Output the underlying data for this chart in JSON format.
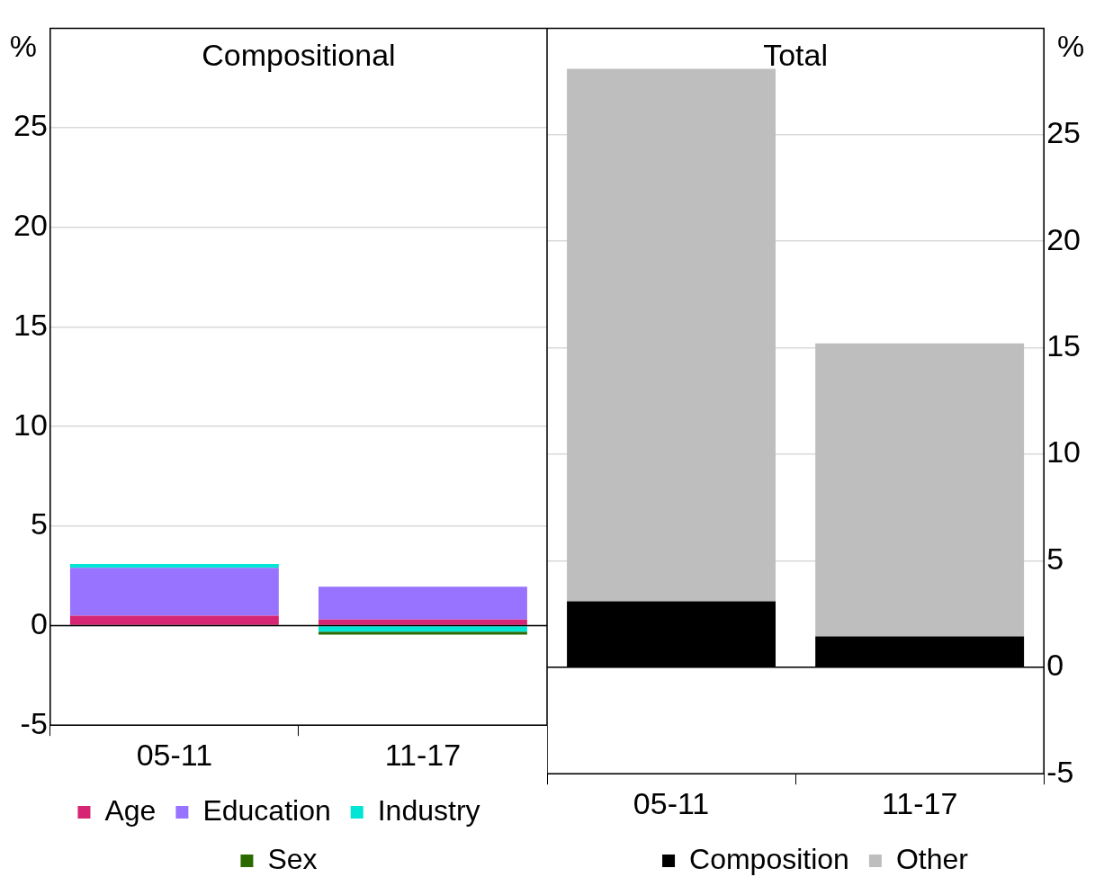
{
  "chart_data": [
    {
      "type": "bar",
      "title": "Compositional",
      "ylabel": "%",
      "categories": [
        "05-11",
        "11-17"
      ],
      "stacked": true,
      "ylim": [
        -5,
        30
      ],
      "yticks": [
        -5,
        0,
        5,
        10,
        15,
        20,
        25
      ],
      "grid": "y",
      "legend": "bottom",
      "ref_lines": [
        {
          "axis": "y",
          "value": 0,
          "color": "#000000"
        }
      ],
      "series": [
        {
          "name": "Age",
          "color": "#d62572",
          "values": [
            0.5,
            0.3
          ]
        },
        {
          "name": "Education",
          "color": "#9873ff",
          "values": [
            2.4,
            1.65
          ]
        },
        {
          "name": "Industry",
          "color": "#00e5d5",
          "values": [
            0.2,
            -0.3
          ]
        },
        {
          "name": "Sex",
          "color": "#2a6a00",
          "values": [
            0,
            -0.15
          ]
        }
      ]
    },
    {
      "type": "bar",
      "title": "Total",
      "y2label": "%",
      "categories": [
        "05-11",
        "11-17"
      ],
      "stacked": true,
      "y2lim": [
        -5,
        30
      ],
      "y2ticks": [
        -5,
        0,
        5,
        10,
        15,
        20,
        25
      ],
      "grid": "y",
      "legend": "bottom",
      "ref_lines": [
        {
          "axis": "y2",
          "value": 0,
          "color": "#000000"
        }
      ],
      "series": [
        {
          "name": "Composition",
          "color": "#000000",
          "values": [
            3.1,
            1.45
          ],
          "axis": "y2"
        },
        {
          "name": "Other",
          "color": "#bebebe",
          "values": [
            25.0,
            13.75
          ],
          "axis": "y2"
        }
      ]
    }
  ]
}
